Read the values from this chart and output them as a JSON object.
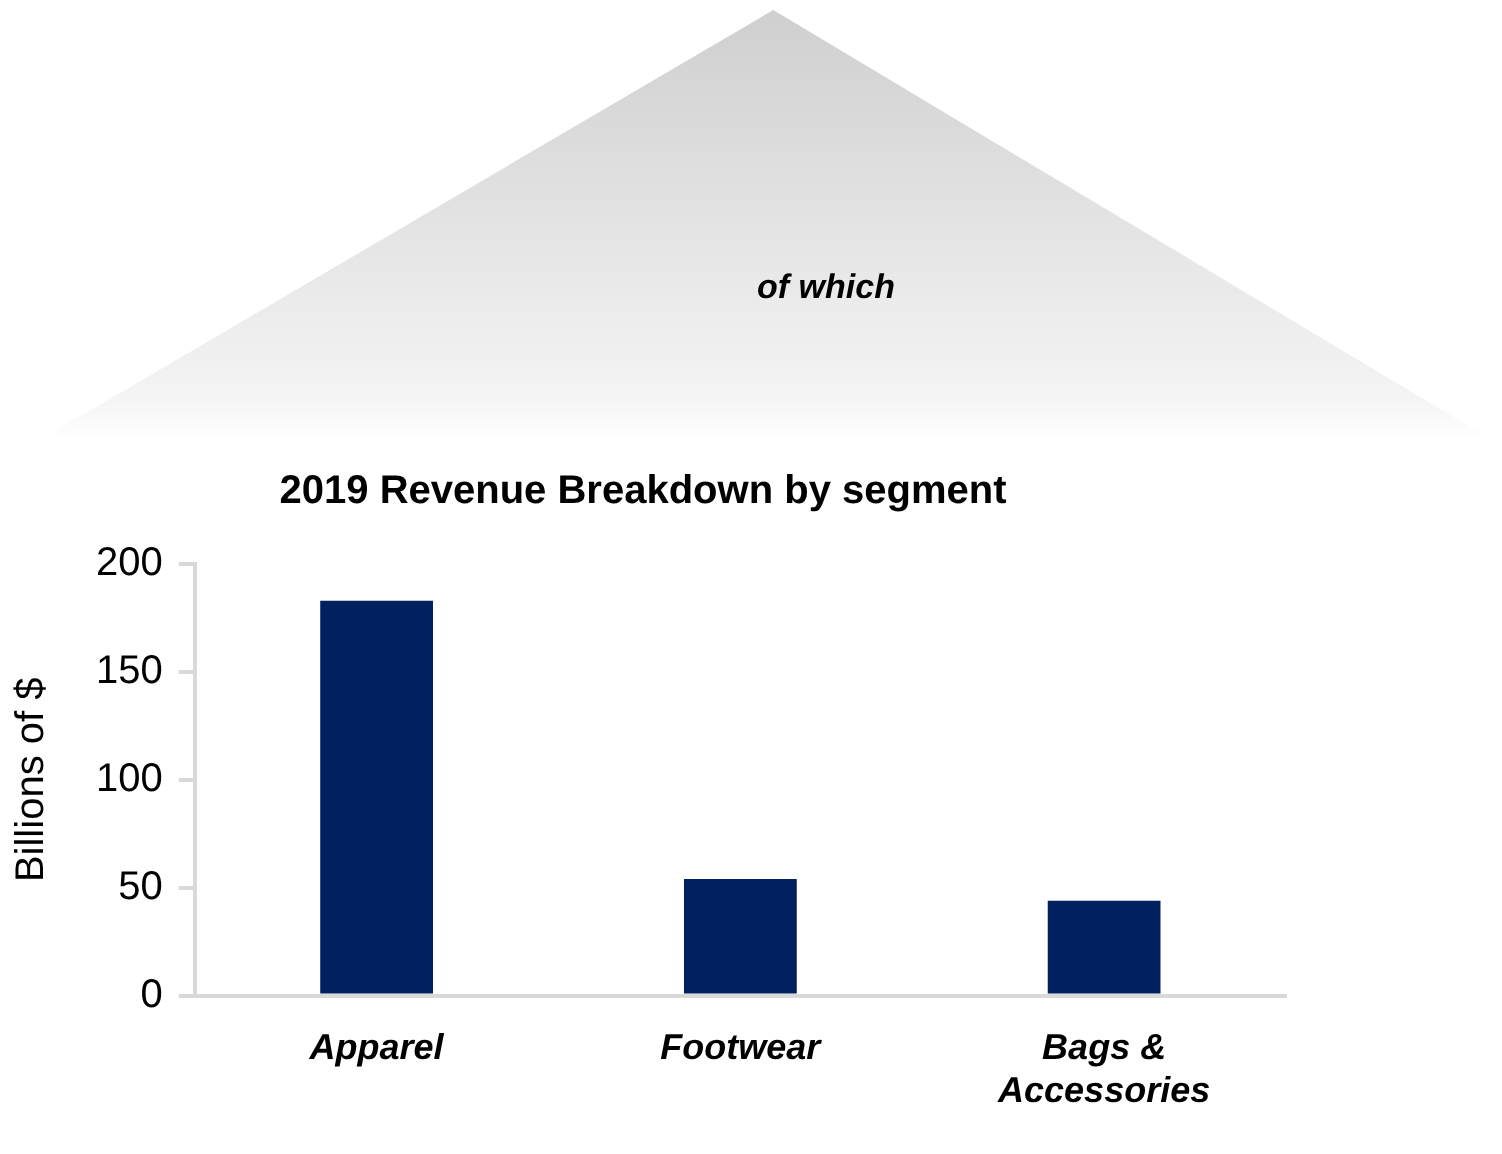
{
  "chart_data": {
    "type": "bar",
    "title": "2019 Revenue Breakdown by segment",
    "ylabel": "Billions of $",
    "categories": [
      "Apparel",
      "Footwear",
      "Bags & Accessories"
    ],
    "values": [
      183,
      54,
      44
    ],
    "color": "#002060",
    "ylim": [
      0,
      200
    ],
    "yticks": [
      0,
      50,
      100,
      150,
      200
    ],
    "annotations": [
      "of which"
    ]
  }
}
